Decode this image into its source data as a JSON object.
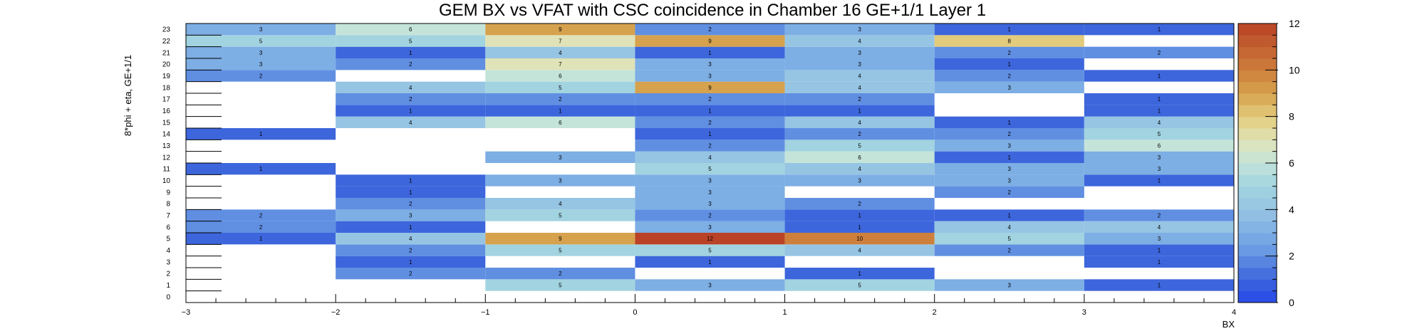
{
  "chart_data": {
    "type": "heatmap",
    "title": "GEM BX vs VFAT with CSC coincidence in Chamber 16 GE+1/1 Layer 1",
    "xlabel": "BX",
    "ylabel": "8*phi + eta, GE+1/1",
    "xlim": [
      -3,
      4
    ],
    "ylim": [
      0,
      24
    ],
    "x_ticks": [
      "−3",
      "−2",
      "−1",
      "0",
      "1",
      "2",
      "3",
      "4"
    ],
    "y_ticks": [
      "0",
      "1",
      "2",
      "3",
      "4",
      "5",
      "6",
      "7",
      "8",
      "9",
      "10",
      "11",
      "12",
      "13",
      "14",
      "15",
      "16",
      "17",
      "18",
      "19",
      "20",
      "21",
      "22",
      "23"
    ],
    "x_bins": [
      -3,
      -2,
      -1,
      0,
      1,
      2,
      3
    ],
    "z_range": [
      0,
      12
    ],
    "colorbar_ticks": [
      "0",
      "2",
      "4",
      "6",
      "8",
      "10",
      "12"
    ],
    "cells": [
      {
        "y": 1,
        "values": [
          null,
          null,
          5,
          3,
          5,
          3,
          1
        ]
      },
      {
        "y": 2,
        "values": [
          null,
          2,
          2,
          null,
          1,
          null,
          null
        ]
      },
      {
        "y": 3,
        "values": [
          null,
          1,
          null,
          1,
          null,
          null,
          1
        ]
      },
      {
        "y": 4,
        "values": [
          null,
          2,
          5,
          5,
          4,
          2,
          1
        ]
      },
      {
        "y": 5,
        "values": [
          1,
          4,
          9,
          12,
          10,
          5,
          3
        ]
      },
      {
        "y": 6,
        "values": [
          2,
          1,
          null,
          3,
          1,
          4,
          4
        ]
      },
      {
        "y": 7,
        "values": [
          2,
          3,
          5,
          2,
          1,
          1,
          2
        ]
      },
      {
        "y": 8,
        "values": [
          null,
          2,
          4,
          3,
          2,
          null,
          null
        ]
      },
      {
        "y": 9,
        "values": [
          null,
          1,
          null,
          3,
          null,
          2,
          null
        ]
      },
      {
        "y": 10,
        "values": [
          null,
          1,
          3,
          3,
          3,
          3,
          1
        ]
      },
      {
        "y": 11,
        "values": [
          1,
          null,
          null,
          5,
          4,
          3,
          3
        ]
      },
      {
        "y": 12,
        "values": [
          null,
          null,
          3,
          4,
          6,
          1,
          3
        ]
      },
      {
        "y": 13,
        "values": [
          null,
          null,
          null,
          2,
          5,
          3,
          6
        ]
      },
      {
        "y": 14,
        "values": [
          1,
          null,
          null,
          1,
          2,
          2,
          5
        ]
      },
      {
        "y": 15,
        "values": [
          null,
          4,
          6,
          2,
          4,
          1,
          4
        ]
      },
      {
        "y": 16,
        "values": [
          null,
          1,
          1,
          1,
          1,
          null,
          1
        ]
      },
      {
        "y": 17,
        "values": [
          null,
          2,
          2,
          2,
          2,
          null,
          1
        ]
      },
      {
        "y": 18,
        "values": [
          null,
          4,
          5,
          9,
          4,
          3,
          null
        ]
      },
      {
        "y": 19,
        "values": [
          2,
          null,
          6,
          3,
          4,
          2,
          1
        ]
      },
      {
        "y": 20,
        "values": [
          3,
          2,
          7,
          3,
          3,
          1,
          null
        ]
      },
      {
        "y": 21,
        "values": [
          3,
          1,
          4,
          1,
          3,
          2,
          2
        ]
      },
      {
        "y": 22,
        "values": [
          5,
          5,
          7,
          9,
          4,
          8,
          null
        ]
      },
      {
        "y": 23,
        "values": [
          3,
          6,
          9,
          2,
          3,
          1,
          1
        ]
      }
    ]
  }
}
